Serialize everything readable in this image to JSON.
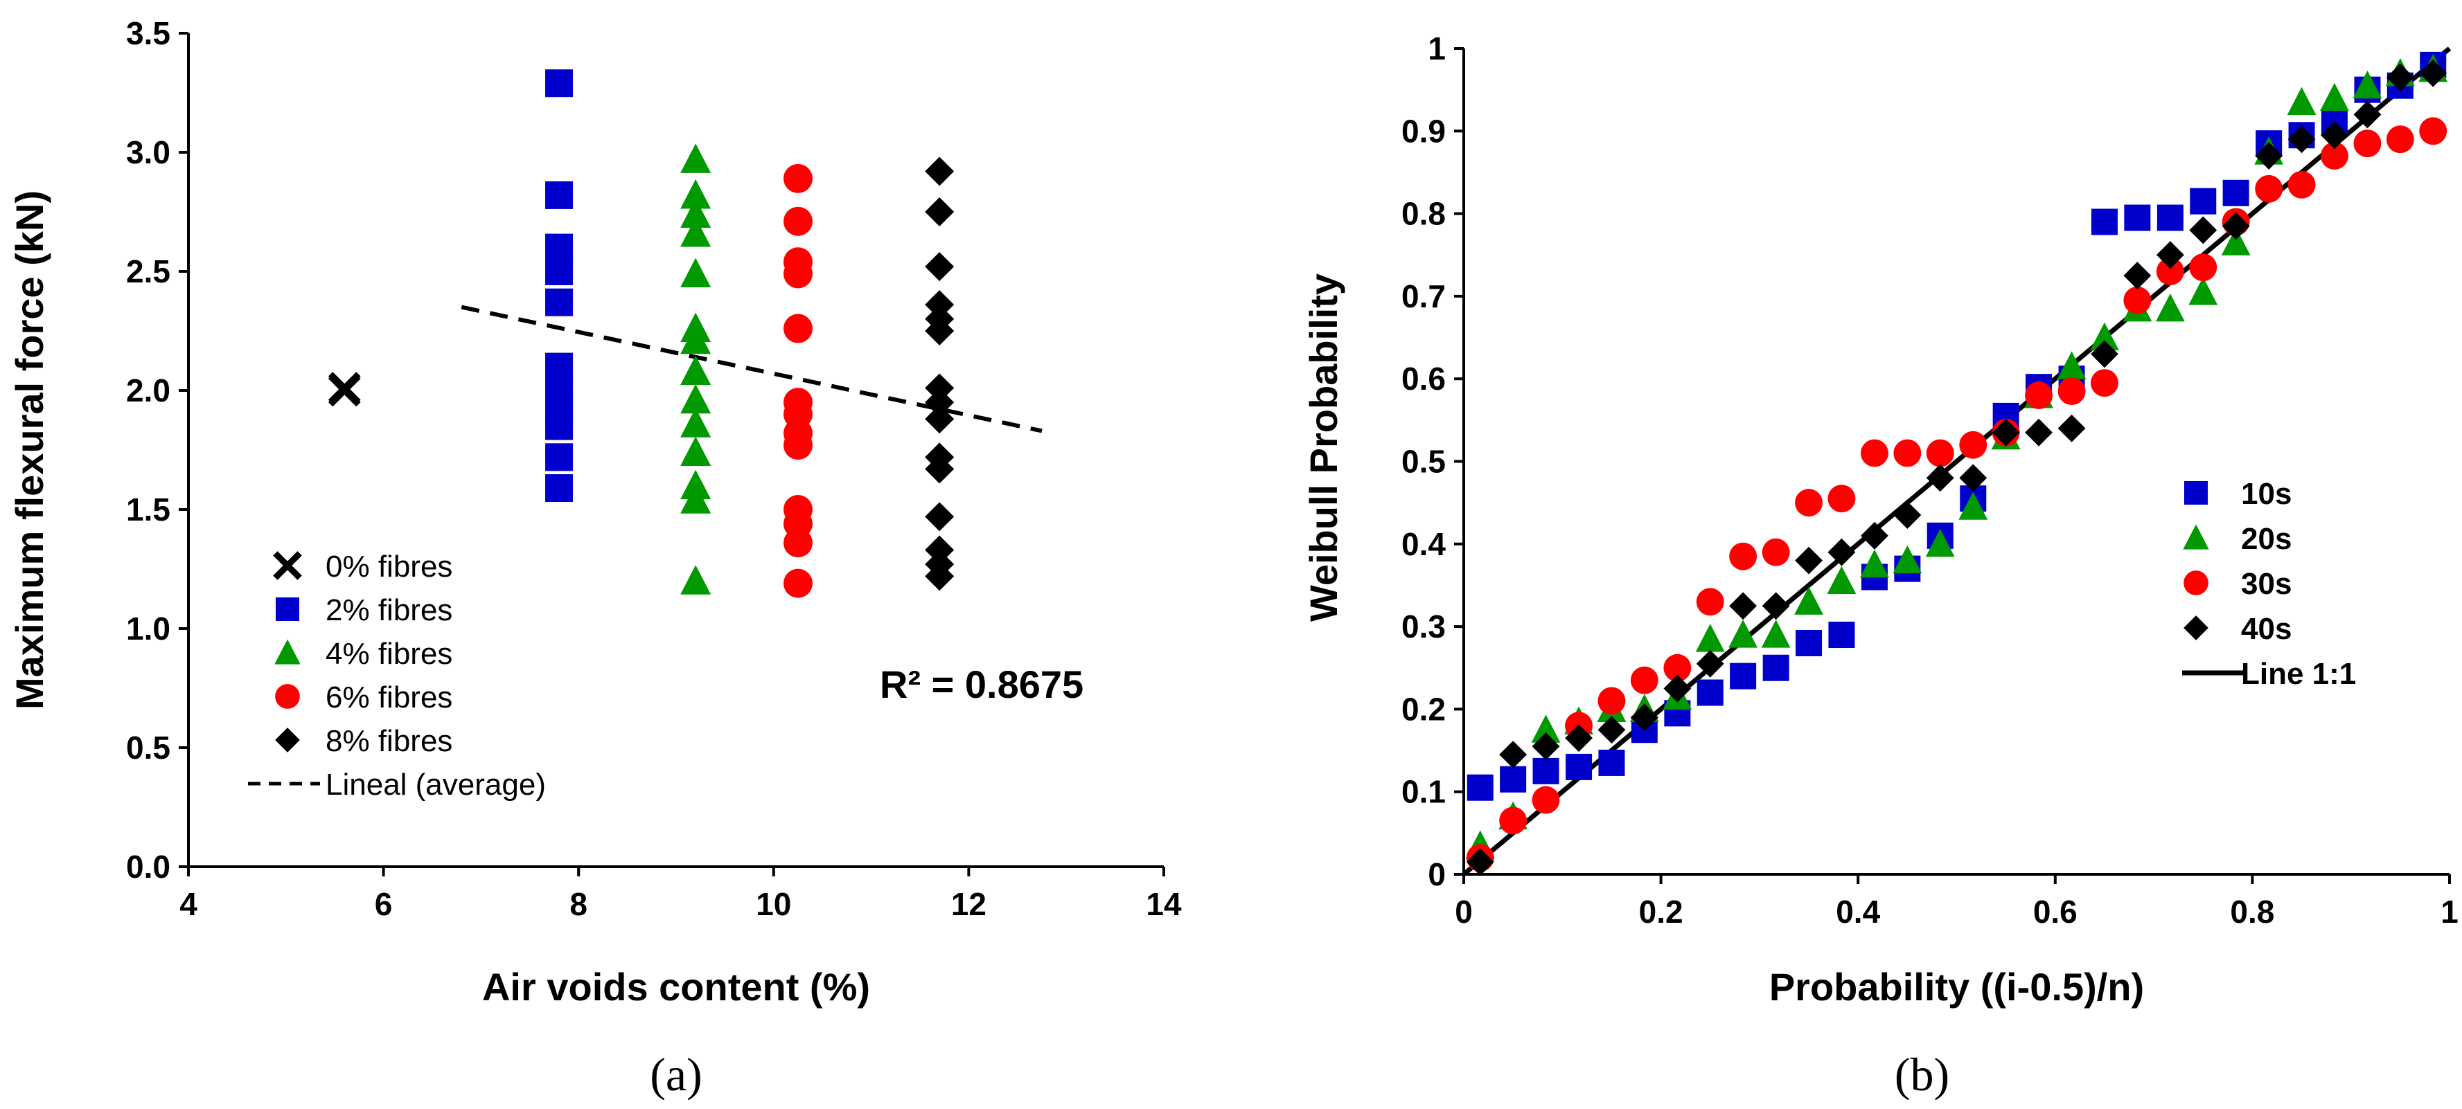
{
  "chart_data": [
    {
      "type": "scatter",
      "panel_label": "(a)",
      "xlabel": "Air voids content (%)",
      "ylabel": "Maximum flexural force (kN)",
      "xlim": [
        4,
        14
      ],
      "ylim": [
        0.0,
        3.5
      ],
      "x_ticks": [
        "4",
        "6",
        "8",
        "10",
        "12",
        "14"
      ],
      "y_ticks": [
        "0.0",
        "0.5",
        "1.0",
        "1.5",
        "2.0",
        "2.5",
        "3.0",
        "3.5"
      ],
      "grid": false,
      "legend_position": "bottom-left",
      "series": [
        {
          "name": "0% fibres",
          "marker": "x",
          "color": "#000000",
          "points": [
            [
              5.6,
              2.01
            ],
            [
              5.6,
              2.0
            ]
          ]
        },
        {
          "name": "2% fibres",
          "marker": "square",
          "color": "#0000CC",
          "points": [
            [
              7.8,
              3.29
            ],
            [
              7.8,
              2.82
            ],
            [
              7.8,
              2.6
            ],
            [
              7.8,
              2.5
            ],
            [
              7.8,
              2.37
            ],
            [
              7.8,
              2.1
            ],
            [
              7.8,
              2.0
            ],
            [
              7.8,
              1.92
            ],
            [
              7.8,
              1.85
            ],
            [
              7.8,
              1.72
            ],
            [
              7.8,
              1.59
            ]
          ]
        },
        {
          "name": "4% fibres",
          "marker": "triangle",
          "color": "#009900",
          "points": [
            [
              9.2,
              2.97
            ],
            [
              9.2,
              2.82
            ],
            [
              9.2,
              2.74
            ],
            [
              9.2,
              2.66
            ],
            [
              9.2,
              2.49
            ],
            [
              9.2,
              2.26
            ],
            [
              9.2,
              2.21
            ],
            [
              9.2,
              2.08
            ],
            [
              9.2,
              1.96
            ],
            [
              9.2,
              1.86
            ],
            [
              9.2,
              1.74
            ],
            [
              9.2,
              1.6
            ],
            [
              9.2,
              1.54
            ],
            [
              9.2,
              1.2
            ]
          ]
        },
        {
          "name": "6% fibres",
          "marker": "circle",
          "color": "#FF0000",
          "points": [
            [
              10.25,
              2.89
            ],
            [
              10.25,
              2.71
            ],
            [
              10.25,
              2.54
            ],
            [
              10.25,
              2.49
            ],
            [
              10.25,
              2.26
            ],
            [
              10.25,
              1.95
            ],
            [
              10.25,
              1.9
            ],
            [
              10.25,
              1.82
            ],
            [
              10.25,
              1.77
            ],
            [
              10.25,
              1.5
            ],
            [
              10.25,
              1.44
            ],
            [
              10.25,
              1.36
            ],
            [
              10.25,
              1.19
            ]
          ]
        },
        {
          "name": "8% fibres",
          "marker": "diamond",
          "color": "#000000",
          "points": [
            [
              11.7,
              2.92
            ],
            [
              11.7,
              2.75
            ],
            [
              11.7,
              2.52
            ],
            [
              11.7,
              2.36
            ],
            [
              11.7,
              2.3
            ],
            [
              11.7,
              2.25
            ],
            [
              11.7,
              2.01
            ],
            [
              11.7,
              1.95
            ],
            [
              11.7,
              1.88
            ],
            [
              11.7,
              1.72
            ],
            [
              11.7,
              1.67
            ],
            [
              11.7,
              1.47
            ],
            [
              11.7,
              1.33
            ],
            [
              11.7,
              1.27
            ],
            [
              11.7,
              1.22
            ]
          ]
        }
      ],
      "trendline": {
        "name": "Lineal (average)",
        "style": "dashed",
        "color": "#000000",
        "x": [
          6.8,
          12.75
        ],
        "y": [
          2.35,
          1.83
        ]
      },
      "annotation": "R² = 0.8675"
    },
    {
      "type": "scatter",
      "panel_label": "(b)",
      "xlabel": "Probability ((i-0.5)/n)",
      "ylabel": "Weibull Probability",
      "xlim": [
        0,
        1
      ],
      "ylim": [
        0,
        1
      ],
      "x_ticks": [
        "0",
        "0.2",
        "0.4",
        "0.6",
        "0.8",
        "1"
      ],
      "y_ticks": [
        "0",
        "0.1",
        "0.2",
        "0.3",
        "0.4",
        "0.5",
        "0.6",
        "0.7",
        "0.8",
        "0.9",
        "1"
      ],
      "grid": false,
      "legend_position": "right",
      "x": [
        0.0167,
        0.05,
        0.0833,
        0.1167,
        0.15,
        0.1833,
        0.2167,
        0.25,
        0.2833,
        0.3167,
        0.35,
        0.3833,
        0.4167,
        0.45,
        0.4833,
        0.5167,
        0.55,
        0.5833,
        0.6167,
        0.65,
        0.6833,
        0.7167,
        0.75,
        0.7833,
        0.8167,
        0.85,
        0.8833,
        0.9167,
        0.95,
        0.9833
      ],
      "series": [
        {
          "name": "10s",
          "marker": "square",
          "color": "#0000CC",
          "values": [
            0.105,
            0.115,
            0.125,
            0.13,
            0.135,
            0.175,
            0.195,
            0.22,
            0.24,
            0.25,
            0.28,
            0.29,
            0.36,
            0.37,
            0.41,
            0.455,
            0.555,
            0.59,
            0.6,
            0.79,
            0.795,
            0.795,
            0.815,
            0.825,
            0.885,
            0.895,
            0.91,
            0.95,
            0.955,
            0.98
          ]
        },
        {
          "name": "20s",
          "marker": "triangle",
          "color": "#009900",
          "values": [
            0.035,
            0.07,
            0.175,
            0.185,
            0.2,
            0.2,
            0.215,
            0.285,
            0.29,
            0.29,
            0.33,
            0.355,
            0.375,
            0.38,
            0.4,
            0.445,
            0.53,
            0.58,
            0.615,
            0.65,
            0.685,
            0.685,
            0.705,
            0.765,
            0.875,
            0.935,
            0.94,
            0.955,
            0.97,
            0.975
          ]
        },
        {
          "name": "30s",
          "marker": "circle",
          "color": "#FF0000",
          "values": [
            0.02,
            0.065,
            0.09,
            0.18,
            0.21,
            0.235,
            0.25,
            0.33,
            0.385,
            0.39,
            0.45,
            0.455,
            0.51,
            0.51,
            0.51,
            0.52,
            0.535,
            0.58,
            0.585,
            0.595,
            0.695,
            0.73,
            0.735,
            0.79,
            0.83,
            0.835,
            0.87,
            0.885,
            0.89,
            0.9
          ]
        },
        {
          "name": "40s",
          "marker": "diamond",
          "color": "#000000",
          "values": [
            0.015,
            0.145,
            0.155,
            0.165,
            0.175,
            0.19,
            0.225,
            0.255,
            0.325,
            0.325,
            0.38,
            0.39,
            0.41,
            0.435,
            0.48,
            0.48,
            0.535,
            0.535,
            0.54,
            0.63,
            0.725,
            0.75,
            0.78,
            0.785,
            0.87,
            0.89,
            0.895,
            0.92,
            0.965,
            0.97
          ]
        }
      ],
      "reference_line": {
        "name": "Line 1:1",
        "color": "#000000",
        "x": [
          0,
          1
        ],
        "y": [
          0,
          1
        ]
      }
    }
  ]
}
